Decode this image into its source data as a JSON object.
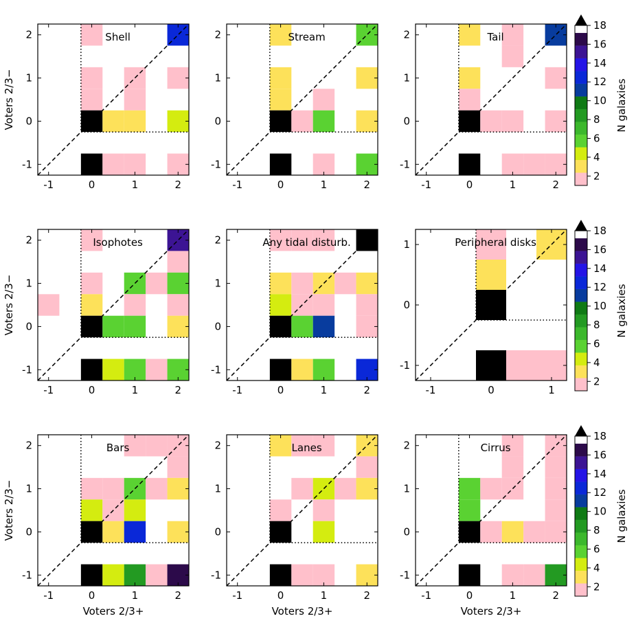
{
  "figure": {
    "xlabel": "Voters 2/3+",
    "ylabel": "Voters 2/3−",
    "colorbar": {
      "label": "N galaxies",
      "ticks": [
        "2",
        "4",
        "6",
        "8",
        "10",
        "12",
        "14",
        "16",
        "18"
      ],
      "levels": [
        "#ffc0cb",
        "#fde15a",
        "#d4ec10",
        "#5ad232",
        "#3cb82c",
        "#239a22",
        "#0f7a14",
        "#083c9e",
        "#0a28d8",
        "#2414e6",
        "#3c1494",
        "#2c0a4a",
        "#000000"
      ]
    }
  },
  "chart_data": [
    {
      "type": "heatmap",
      "title": "Shell",
      "xlabel": "",
      "ylabel": "Voters 2/3−",
      "x_ticks": [
        "-1",
        "0",
        "1",
        "2"
      ],
      "y_ticks": [
        "-1",
        "0",
        "1",
        "2"
      ],
      "xlim": [
        -1.25,
        2.25
      ],
      "ylim": [
        -1.25,
        2.25
      ],
      "cell_size": 0.5,
      "cells": [
        {
          "x": 0.0,
          "y": 2.0,
          "n": 1
        },
        {
          "x": 2.0,
          "y": 2.0,
          "n": 12
        },
        {
          "x": 0.0,
          "y": 1.0,
          "n": 1
        },
        {
          "x": 1.0,
          "y": 1.0,
          "n": 1
        },
        {
          "x": 2.0,
          "y": 1.0,
          "n": 1
        },
        {
          "x": 0.0,
          "y": 0.5,
          "n": 1
        },
        {
          "x": 1.0,
          "y": 0.5,
          "n": 1
        },
        {
          "x": 0.0,
          "y": 0.0,
          "n": 18
        },
        {
          "x": 0.5,
          "y": 0.0,
          "n": 3
        },
        {
          "x": 1.0,
          "y": 0.0,
          "n": 3
        },
        {
          "x": 2.0,
          "y": 0.0,
          "n": 5
        },
        {
          "x": 0.0,
          "y": -1.0,
          "n": 18
        },
        {
          "x": 0.5,
          "y": -1.0,
          "n": 1
        },
        {
          "x": 1.0,
          "y": -1.0,
          "n": 1
        },
        {
          "x": 2.0,
          "y": -1.0,
          "n": 1
        }
      ],
      "dotted_boundary": [
        [
          -0.25,
          2.25
        ],
        [
          -0.25,
          -0.25
        ],
        [
          2.25,
          -0.25
        ]
      ]
    },
    {
      "type": "heatmap",
      "title": "Stream",
      "xlabel": "",
      "ylabel": "",
      "x_ticks": [
        "-1",
        "0",
        "1",
        "2"
      ],
      "y_ticks": [
        "-1",
        "0",
        "1",
        "2"
      ],
      "xlim": [
        -1.25,
        2.25
      ],
      "ylim": [
        -1.25,
        2.25
      ],
      "cell_size": 0.5,
      "cells": [
        {
          "x": 0.0,
          "y": 2.0,
          "n": 3
        },
        {
          "x": 2.0,
          "y": 2.0,
          "n": 6
        },
        {
          "x": 0.0,
          "y": 1.0,
          "n": 3
        },
        {
          "x": 2.0,
          "y": 1.0,
          "n": 3
        },
        {
          "x": 0.0,
          "y": 0.5,
          "n": 3
        },
        {
          "x": 1.0,
          "y": 0.5,
          "n": 1
        },
        {
          "x": 0.0,
          "y": 0.0,
          "n": 18
        },
        {
          "x": 0.5,
          "y": 0.0,
          "n": 1
        },
        {
          "x": 1.0,
          "y": 0.0,
          "n": 6
        },
        {
          "x": 2.0,
          "y": 0.0,
          "n": 3
        },
        {
          "x": 0.0,
          "y": -1.0,
          "n": 18
        },
        {
          "x": 1.0,
          "y": -1.0,
          "n": 1
        },
        {
          "x": 2.0,
          "y": -1.0,
          "n": 6
        }
      ],
      "dotted_boundary": [
        [
          -0.25,
          2.25
        ],
        [
          -0.25,
          -0.25
        ],
        [
          2.25,
          -0.25
        ]
      ]
    },
    {
      "type": "heatmap",
      "title": "Tail",
      "xlabel": "",
      "ylabel": "",
      "x_ticks": [
        "-1",
        "0",
        "1",
        "2"
      ],
      "y_ticks": [
        "-1",
        "0",
        "1",
        "2"
      ],
      "xlim": [
        -1.25,
        2.25
      ],
      "ylim": [
        -1.25,
        2.25
      ],
      "cell_size": 0.5,
      "cells": [
        {
          "x": 0.0,
          "y": 2.0,
          "n": 3
        },
        {
          "x": 1.0,
          "y": 2.0,
          "n": 1
        },
        {
          "x": 2.0,
          "y": 2.0,
          "n": 11
        },
        {
          "x": 1.0,
          "y": 1.5,
          "n": 1
        },
        {
          "x": 0.0,
          "y": 1.0,
          "n": 3
        },
        {
          "x": 2.0,
          "y": 1.0,
          "n": 1
        },
        {
          "x": 0.0,
          "y": 0.5,
          "n": 1
        },
        {
          "x": 0.0,
          "y": 0.0,
          "n": 18
        },
        {
          "x": 0.5,
          "y": 0.0,
          "n": 1
        },
        {
          "x": 1.0,
          "y": 0.0,
          "n": 1
        },
        {
          "x": 2.0,
          "y": 0.0,
          "n": 1
        },
        {
          "x": 0.0,
          "y": -1.0,
          "n": 18
        },
        {
          "x": 1.0,
          "y": -1.0,
          "n": 1
        },
        {
          "x": 1.5,
          "y": -1.0,
          "n": 1
        },
        {
          "x": 2.0,
          "y": -1.0,
          "n": 1
        }
      ],
      "dotted_boundary": [
        [
          -0.25,
          2.25
        ],
        [
          -0.25,
          -0.25
        ],
        [
          2.25,
          -0.25
        ]
      ]
    },
    {
      "type": "heatmap",
      "title": "Isophotes",
      "xlabel": "",
      "ylabel": "Voters 2/3−",
      "x_ticks": [
        "-1",
        "0",
        "1",
        "2"
      ],
      "y_ticks": [
        "-1",
        "0",
        "1",
        "2"
      ],
      "xlim": [
        -1.25,
        2.25
      ],
      "ylim": [
        -1.25,
        2.25
      ],
      "cell_size": 0.5,
      "cells": [
        {
          "x": 0.0,
          "y": 2.0,
          "n": 1
        },
        {
          "x": 2.0,
          "y": 2.0,
          "n": 15
        },
        {
          "x": 2.0,
          "y": 1.5,
          "n": 1
        },
        {
          "x": 0.0,
          "y": 1.0,
          "n": 1
        },
        {
          "x": 1.0,
          "y": 1.0,
          "n": 6
        },
        {
          "x": 1.5,
          "y": 1.0,
          "n": 1
        },
        {
          "x": 2.0,
          "y": 1.0,
          "n": 6
        },
        {
          "x": -1.0,
          "y": 0.5,
          "n": 1
        },
        {
          "x": 0.0,
          "y": 0.5,
          "n": 3
        },
        {
          "x": 1.0,
          "y": 0.5,
          "n": 1
        },
        {
          "x": 2.0,
          "y": 0.5,
          "n": 1
        },
        {
          "x": 0.0,
          "y": 0.0,
          "n": 18
        },
        {
          "x": 0.5,
          "y": 0.0,
          "n": 6
        },
        {
          "x": 1.0,
          "y": 0.0,
          "n": 6
        },
        {
          "x": 2.0,
          "y": 0.0,
          "n": 3
        },
        {
          "x": 0.0,
          "y": -1.0,
          "n": 18
        },
        {
          "x": 0.5,
          "y": -1.0,
          "n": 5
        },
        {
          "x": 1.0,
          "y": -1.0,
          "n": 6
        },
        {
          "x": 1.5,
          "y": -1.0,
          "n": 1
        },
        {
          "x": 2.0,
          "y": -1.0,
          "n": 6
        }
      ],
      "dotted_boundary": [
        [
          -0.25,
          2.25
        ],
        [
          -0.25,
          -0.25
        ],
        [
          2.25,
          -0.25
        ]
      ]
    },
    {
      "type": "heatmap",
      "title": "Any tidal disturb.",
      "xlabel": "",
      "ylabel": "",
      "x_ticks": [
        "-1",
        "0",
        "1",
        "2"
      ],
      "y_ticks": [
        "-1",
        "0",
        "1",
        "2"
      ],
      "xlim": [
        -1.25,
        2.25
      ],
      "ylim": [
        -1.25,
        2.25
      ],
      "cell_size": 0.5,
      "cells": [
        {
          "x": 0.0,
          "y": 2.0,
          "n": 1
        },
        {
          "x": 0.5,
          "y": 2.0,
          "n": 1
        },
        {
          "x": 1.0,
          "y": 2.0,
          "n": 1
        },
        {
          "x": 2.0,
          "y": 2.0,
          "n": 18
        },
        {
          "x": 0.0,
          "y": 1.0,
          "n": 3
        },
        {
          "x": 0.5,
          "y": 1.0,
          "n": 1
        },
        {
          "x": 1.0,
          "y": 1.0,
          "n": 3
        },
        {
          "x": 1.5,
          "y": 1.0,
          "n": 1
        },
        {
          "x": 2.0,
          "y": 1.0,
          "n": 3
        },
        {
          "x": 0.0,
          "y": 0.5,
          "n": 5
        },
        {
          "x": 0.5,
          "y": 0.5,
          "n": 1
        },
        {
          "x": 1.0,
          "y": 0.5,
          "n": 1
        },
        {
          "x": 2.0,
          "y": 0.5,
          "n": 1
        },
        {
          "x": 0.0,
          "y": 0.0,
          "n": 18
        },
        {
          "x": 0.5,
          "y": 0.0,
          "n": 6
        },
        {
          "x": 1.0,
          "y": 0.0,
          "n": 11
        },
        {
          "x": 2.0,
          "y": 0.0,
          "n": 1
        },
        {
          "x": 0.0,
          "y": -1.0,
          "n": 18
        },
        {
          "x": 0.5,
          "y": -1.0,
          "n": 3
        },
        {
          "x": 1.0,
          "y": -1.0,
          "n": 6
        },
        {
          "x": 2.0,
          "y": -1.0,
          "n": 13
        }
      ],
      "dotted_boundary": [
        [
          -0.25,
          2.25
        ],
        [
          -0.25,
          -0.25
        ],
        [
          2.25,
          -0.25
        ]
      ]
    },
    {
      "type": "heatmap",
      "title": "Peripheral disks",
      "xlabel": "",
      "ylabel": "",
      "x_ticks": [
        "-1",
        "0",
        "1"
      ],
      "y_ticks": [
        "-1",
        "0",
        "1"
      ],
      "xlim": [
        -1.25,
        1.25
      ],
      "ylim": [
        -1.25,
        1.25
      ],
      "cell_size": 0.5,
      "cells": [
        {
          "x": 0.0,
          "y": 1.0,
          "n": 1
        },
        {
          "x": 1.0,
          "y": 1.0,
          "n": 3
        },
        {
          "x": 0.0,
          "y": 0.5,
          "n": 3
        },
        {
          "x": 0.0,
          "y": 0.0,
          "n": 18
        },
        {
          "x": 0.0,
          "y": -1.0,
          "n": 18
        },
        {
          "x": 0.5,
          "y": -1.0,
          "n": 1
        },
        {
          "x": 1.0,
          "y": -1.0,
          "n": 1
        }
      ],
      "dotted_boundary": [
        [
          -0.25,
          1.25
        ],
        [
          -0.25,
          -0.25
        ],
        [
          1.25,
          -0.25
        ]
      ]
    },
    {
      "type": "heatmap",
      "title": "Bars",
      "xlabel": "Voters 2/3+",
      "ylabel": "Voters 2/3−",
      "x_ticks": [
        "-1",
        "0",
        "1",
        "2"
      ],
      "y_ticks": [
        "-1",
        "0",
        "1",
        "2"
      ],
      "xlim": [
        -1.25,
        2.25
      ],
      "ylim": [
        -1.25,
        2.25
      ],
      "cell_size": 0.5,
      "cells": [
        {
          "x": 1.0,
          "y": 2.0,
          "n": 1
        },
        {
          "x": 1.5,
          "y": 2.0,
          "n": 1
        },
        {
          "x": 2.0,
          "y": 2.0,
          "n": 1
        },
        {
          "x": 2.0,
          "y": 1.5,
          "n": 1
        },
        {
          "x": 0.0,
          "y": 1.0,
          "n": 1
        },
        {
          "x": 0.5,
          "y": 1.0,
          "n": 1
        },
        {
          "x": 1.0,
          "y": 1.0,
          "n": 6
        },
        {
          "x": 1.5,
          "y": 1.0,
          "n": 1
        },
        {
          "x": 2.0,
          "y": 1.0,
          "n": 3
        },
        {
          "x": 0.0,
          "y": 0.5,
          "n": 5
        },
        {
          "x": 0.5,
          "y": 0.5,
          "n": 1
        },
        {
          "x": 1.0,
          "y": 0.5,
          "n": 5
        },
        {
          "x": 0.0,
          "y": 0.0,
          "n": 18
        },
        {
          "x": 0.5,
          "y": 0.0,
          "n": 3
        },
        {
          "x": 1.0,
          "y": 0.0,
          "n": 13
        },
        {
          "x": 2.0,
          "y": 0.0,
          "n": 3
        },
        {
          "x": 0.0,
          "y": -1.0,
          "n": 18
        },
        {
          "x": 0.5,
          "y": -1.0,
          "n": 5
        },
        {
          "x": 1.0,
          "y": -1.0,
          "n": 9
        },
        {
          "x": 1.5,
          "y": -1.0,
          "n": 1
        },
        {
          "x": 2.0,
          "y": -1.0,
          "n": 17
        }
      ],
      "dotted_boundary": [
        [
          -0.25,
          2.25
        ],
        [
          -0.25,
          -0.25
        ],
        [
          2.25,
          -0.25
        ]
      ]
    },
    {
      "type": "heatmap",
      "title": "Lanes",
      "xlabel": "Voters 2/3+",
      "ylabel": "",
      "x_ticks": [
        "-1",
        "0",
        "1",
        "2"
      ],
      "y_ticks": [
        "-1",
        "0",
        "1",
        "2"
      ],
      "xlim": [
        -1.25,
        2.25
      ],
      "ylim": [
        -1.25,
        2.25
      ],
      "cell_size": 0.5,
      "cells": [
        {
          "x": 0.0,
          "y": 2.0,
          "n": 3
        },
        {
          "x": 0.5,
          "y": 2.0,
          "n": 1
        },
        {
          "x": 1.0,
          "y": 2.0,
          "n": 1
        },
        {
          "x": 2.0,
          "y": 2.0,
          "n": 3
        },
        {
          "x": 2.0,
          "y": 1.5,
          "n": 1
        },
        {
          "x": 0.5,
          "y": 1.0,
          "n": 1
        },
        {
          "x": 1.0,
          "y": 1.0,
          "n": 5
        },
        {
          "x": 1.5,
          "y": 1.0,
          "n": 1
        },
        {
          "x": 2.0,
          "y": 1.0,
          "n": 3
        },
        {
          "x": 0.0,
          "y": 0.5,
          "n": 1
        },
        {
          "x": 1.0,
          "y": 0.5,
          "n": 1
        },
        {
          "x": 0.0,
          "y": 0.0,
          "n": 18
        },
        {
          "x": 1.0,
          "y": 0.0,
          "n": 5
        },
        {
          "x": 0.0,
          "y": -1.0,
          "n": 18
        },
        {
          "x": 0.5,
          "y": -1.0,
          "n": 1
        },
        {
          "x": 1.0,
          "y": -1.0,
          "n": 1
        },
        {
          "x": 2.0,
          "y": -1.0,
          "n": 3
        }
      ],
      "dotted_boundary": [
        [
          -0.25,
          2.25
        ],
        [
          -0.25,
          -0.25
        ],
        [
          2.25,
          -0.25
        ]
      ]
    },
    {
      "type": "heatmap",
      "title": "Cirrus",
      "xlabel": "Voters 2/3+",
      "ylabel": "",
      "x_ticks": [
        "-1",
        "0",
        "1",
        "2"
      ],
      "y_ticks": [
        "-1",
        "0",
        "1",
        "2"
      ],
      "xlim": [
        -1.25,
        2.25
      ],
      "ylim": [
        -1.25,
        2.25
      ],
      "cell_size": 0.5,
      "cells": [
        {
          "x": 1.0,
          "y": 2.0,
          "n": 1
        },
        {
          "x": 2.0,
          "y": 2.0,
          "n": 1
        },
        {
          "x": 1.0,
          "y": 1.5,
          "n": 1
        },
        {
          "x": 2.0,
          "y": 1.5,
          "n": 1
        },
        {
          "x": 0.0,
          "y": 1.0,
          "n": 6
        },
        {
          "x": 0.5,
          "y": 1.0,
          "n": 1
        },
        {
          "x": 1.0,
          "y": 1.0,
          "n": 1
        },
        {
          "x": 2.0,
          "y": 1.0,
          "n": 1
        },
        {
          "x": 0.0,
          "y": 0.5,
          "n": 6
        },
        {
          "x": 2.0,
          "y": 0.5,
          "n": 1
        },
        {
          "x": 0.0,
          "y": 0.0,
          "n": 18
        },
        {
          "x": 0.5,
          "y": 0.0,
          "n": 1
        },
        {
          "x": 1.0,
          "y": 0.0,
          "n": 3
        },
        {
          "x": 1.5,
          "y": 0.0,
          "n": 1
        },
        {
          "x": 2.0,
          "y": 0.0,
          "n": 1
        },
        {
          "x": 0.0,
          "y": -1.0,
          "n": 18
        },
        {
          "x": 1.0,
          "y": -1.0,
          "n": 1
        },
        {
          "x": 1.5,
          "y": -1.0,
          "n": 1
        },
        {
          "x": 2.0,
          "y": -1.0,
          "n": 9
        }
      ],
      "dotted_boundary": [
        [
          -0.25,
          2.25
        ],
        [
          -0.25,
          -0.25
        ],
        [
          2.25,
          -0.25
        ]
      ]
    }
  ]
}
